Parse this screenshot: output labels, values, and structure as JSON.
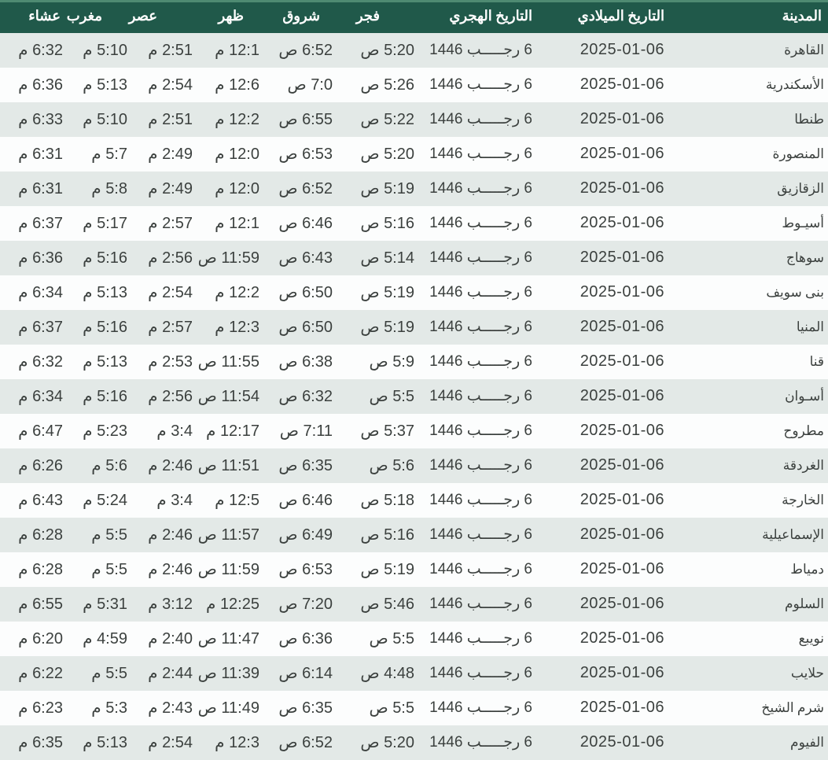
{
  "table": {
    "columns": [
      {
        "key": "city",
        "label": "المدينة"
      },
      {
        "key": "gregorian",
        "label": "التاريخ الميلادي"
      },
      {
        "key": "hijri",
        "label": "التاريخ الهجري"
      },
      {
        "key": "fajr",
        "label": "فجر"
      },
      {
        "key": "sunrise",
        "label": "شروق"
      },
      {
        "key": "dhuhr",
        "label": "ظهر"
      },
      {
        "key": "asr",
        "label": "عصر"
      },
      {
        "key": "maghrib",
        "label": "مغرب"
      },
      {
        "key": "isha",
        "label": "عشاء"
      }
    ],
    "rows": [
      {
        "city": "القاهرة",
        "gregorian": "2025-01-06",
        "hijri": "6 رجـــــب 1446",
        "fajr": "5:20 ص",
        "sunrise": "6:52 ص",
        "dhuhr": "12:1 م",
        "asr": "2:51 م",
        "maghrib": "5:10 م",
        "isha": "6:32 م"
      },
      {
        "city": "الأسكندرية",
        "gregorian": "2025-01-06",
        "hijri": "6 رجـــــب 1446",
        "fajr": "5:26 ص",
        "sunrise": "7:0 ص",
        "dhuhr": "12:6 م",
        "asr": "2:54 م",
        "maghrib": "5:13 م",
        "isha": "6:36 م"
      },
      {
        "city": "طنطا",
        "gregorian": "2025-01-06",
        "hijri": "6 رجـــــب 1446",
        "fajr": "5:22 ص",
        "sunrise": "6:55 ص",
        "dhuhr": "12:2 م",
        "asr": "2:51 م",
        "maghrib": "5:10 م",
        "isha": "6:33 م"
      },
      {
        "city": "المنصورة",
        "gregorian": "2025-01-06",
        "hijri": "6 رجـــــب 1446",
        "fajr": "5:20 ص",
        "sunrise": "6:53 ص",
        "dhuhr": "12:0 م",
        "asr": "2:49 م",
        "maghrib": "5:7 م",
        "isha": "6:31 م"
      },
      {
        "city": "الزقازيق",
        "gregorian": "2025-01-06",
        "hijri": "6 رجـــــب 1446",
        "fajr": "5:19 ص",
        "sunrise": "6:52 ص",
        "dhuhr": "12:0 م",
        "asr": "2:49 م",
        "maghrib": "5:8 م",
        "isha": "6:31 م"
      },
      {
        "city": "أسيـوط",
        "gregorian": "2025-01-06",
        "hijri": "6 رجـــــب 1446",
        "fajr": "5:16 ص",
        "sunrise": "6:46 ص",
        "dhuhr": "12:1 م",
        "asr": "2:57 م",
        "maghrib": "5:17 م",
        "isha": "6:37 م"
      },
      {
        "city": "سوهاج",
        "gregorian": "2025-01-06",
        "hijri": "6 رجـــــب 1446",
        "fajr": "5:14 ص",
        "sunrise": "6:43 ص",
        "dhuhr": "11:59 ص",
        "asr": "2:56 م",
        "maghrib": "5:16 م",
        "isha": "6:36 م"
      },
      {
        "city": "بنى سويف",
        "gregorian": "2025-01-06",
        "hijri": "6 رجـــــب 1446",
        "fajr": "5:19 ص",
        "sunrise": "6:50 ص",
        "dhuhr": "12:2 م",
        "asr": "2:54 م",
        "maghrib": "5:13 م",
        "isha": "6:34 م"
      },
      {
        "city": "المنيا",
        "gregorian": "2025-01-06",
        "hijri": "6 رجـــــب 1446",
        "fajr": "5:19 ص",
        "sunrise": "6:50 ص",
        "dhuhr": "12:3 م",
        "asr": "2:57 م",
        "maghrib": "5:16 م",
        "isha": "6:37 م"
      },
      {
        "city": "قنا",
        "gregorian": "2025-01-06",
        "hijri": "6 رجـــــب 1446",
        "fajr": "5:9 ص",
        "sunrise": "6:38 ص",
        "dhuhr": "11:55 ص",
        "asr": "2:53 م",
        "maghrib": "5:13 م",
        "isha": "6:32 م"
      },
      {
        "city": "أسـوان",
        "gregorian": "2025-01-06",
        "hijri": "6 رجـــــب 1446",
        "fajr": "5:5 ص",
        "sunrise": "6:32 ص",
        "dhuhr": "11:54 ص",
        "asr": "2:56 م",
        "maghrib": "5:16 م",
        "isha": "6:34 م"
      },
      {
        "city": "مطروح",
        "gregorian": "2025-01-06",
        "hijri": "6 رجـــــب 1446",
        "fajr": "5:37 ص",
        "sunrise": "7:11 ص",
        "dhuhr": "12:17 م",
        "asr": "3:4 م",
        "maghrib": "5:23 م",
        "isha": "6:47 م"
      },
      {
        "city": "الغردقة",
        "gregorian": "2025-01-06",
        "hijri": "6 رجـــــب 1446",
        "fajr": "5:6 ص",
        "sunrise": "6:35 ص",
        "dhuhr": "11:51 ص",
        "asr": "2:46 م",
        "maghrib": "5:6 م",
        "isha": "6:26 م"
      },
      {
        "city": "الخارجة",
        "gregorian": "2025-01-06",
        "hijri": "6 رجـــــب 1446",
        "fajr": "5:18 ص",
        "sunrise": "6:46 ص",
        "dhuhr": "12:5 م",
        "asr": "3:4 م",
        "maghrib": "5:24 م",
        "isha": "6:43 م"
      },
      {
        "city": "الإسماعيلية",
        "gregorian": "2025-01-06",
        "hijri": "6 رجـــــب 1446",
        "fajr": "5:16 ص",
        "sunrise": "6:49 ص",
        "dhuhr": "11:57 ص",
        "asr": "2:46 م",
        "maghrib": "5:5 م",
        "isha": "6:28 م"
      },
      {
        "city": "دمياط",
        "gregorian": "2025-01-06",
        "hijri": "6 رجـــــب 1446",
        "fajr": "5:19 ص",
        "sunrise": "6:53 ص",
        "dhuhr": "11:59 ص",
        "asr": "2:46 م",
        "maghrib": "5:5 م",
        "isha": "6:28 م"
      },
      {
        "city": "السلوم",
        "gregorian": "2025-01-06",
        "hijri": "6 رجـــــب 1446",
        "fajr": "5:46 ص",
        "sunrise": "7:20 ص",
        "dhuhr": "12:25 م",
        "asr": "3:12 م",
        "maghrib": "5:31 م",
        "isha": "6:55 م"
      },
      {
        "city": "نويبع",
        "gregorian": "2025-01-06",
        "hijri": "6 رجـــــب 1446",
        "fajr": "5:5 ص",
        "sunrise": "6:36 ص",
        "dhuhr": "11:47 ص",
        "asr": "2:40 م",
        "maghrib": "4:59 م",
        "isha": "6:20 م"
      },
      {
        "city": "حلايب",
        "gregorian": "2025-01-06",
        "hijri": "6 رجـــــب 1446",
        "fajr": "4:48 ص",
        "sunrise": "6:14 ص",
        "dhuhr": "11:39 ص",
        "asr": "2:44 م",
        "maghrib": "5:5 م",
        "isha": "6:22 م"
      },
      {
        "city": "شرم الشيخ",
        "gregorian": "2025-01-06",
        "hijri": "6 رجـــــب 1446",
        "fajr": "5:5 ص",
        "sunrise": "6:35 ص",
        "dhuhr": "11:49 ص",
        "asr": "2:43 م",
        "maghrib": "5:3 م",
        "isha": "6:23 م"
      },
      {
        "city": "الفيوم",
        "gregorian": "2025-01-06",
        "hijri": "6 رجـــــب 1446",
        "fajr": "5:20 ص",
        "sunrise": "6:52 ص",
        "dhuhr": "12:3 م",
        "asr": "2:54 م",
        "maghrib": "5:13 م",
        "isha": "6:35 م"
      }
    ]
  },
  "colors": {
    "header_bg": "#20594a",
    "header_top_border": "#4e8a72",
    "row_stripe": "#e3e9e7",
    "row_white": "#fcfdfd",
    "body_text": "#3b403e",
    "header_text": "#ffffff"
  }
}
